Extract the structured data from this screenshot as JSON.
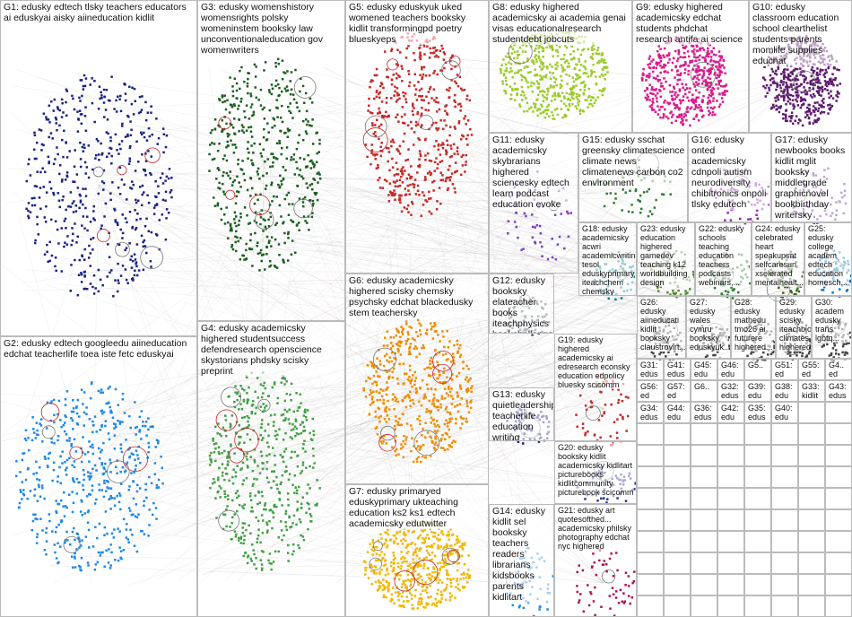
{
  "groups": [
    {
      "label": "G1: edusky edtech tlsky teachers educators ai eduskyai aisky aiineducation kidlit"
    },
    {
      "label": "G2: edusky edtech googleedu aiineducation edchat teacherlife toea iste fetc eduskyai"
    },
    {
      "label": "G3: edusky womenshistory womensrights polsky womeninstem booksky law unconventionaleducation gov womenwriters"
    },
    {
      "label": "G4: edusky academicsky highered studentsuccess defendresearch openscience skystorians phdsky scisky preprint"
    },
    {
      "label": "G5: edusky eduskyuk uked womened teachers booksky kidlit transformingpd poetry blueskyeps"
    },
    {
      "label": "G6: edusky academicsky highered scisky chemsky psychsky edchat blackedusky stem teachersky"
    },
    {
      "label": "G7: edusky primaryed eduskyprimary ukteaching education ks2 ks1 edtech academicsky edutwitter"
    },
    {
      "label": "G8: edusky highered academicsky ai academia genai visas educationalresearch studentdebt jobcuts"
    },
    {
      "label": "G9: edusky highered academicsky edchat students phdchat research antifa ai science"
    },
    {
      "label": "G10: edusky classroom education school clearthelist students parents momlife supplies educhat"
    },
    {
      "label": "G11: edusky academicsky skybrarians highered sciencesky edtech learn podcast education evoke"
    },
    {
      "label": "G12: edusky booksky elateacher books iteachphysics bookchallenge 20daybookchallenge physics kidlit mglit"
    },
    {
      "label": "G13: edusky quietleadership teacherlife education writing schoolleadership teaching introvert edsky literacy"
    },
    {
      "label": "G14: edusky kidlit sel booksky teachers readers librarians kidsbooks parents kidlitart"
    },
    {
      "label": "G15: edusky sschat greensky climatescience climate news climatenews carbon co2 environment"
    },
    {
      "label": "G16: edusky onted academicsky cdnpoli autism neurodiversity chibitronics onpoli tlsky edutech"
    },
    {
      "label": "G17: edusky newbooks books kidlit mglit booksky middlegrade graphicnovel bookbirthday writersky"
    },
    {
      "label": "G18: edusky academicsky acwri academicwriting tesol eduskyprimary iteachchem chemsky ukteaching"
    },
    {
      "label": "G19: edusky highered academicsky ai edresearch econsky education edpolicy bluesky scicomm"
    },
    {
      "label": "G20: edusky booksky kidlit academicsky kidlitart picturebooks kidlitcommunity picturebook scicomm"
    },
    {
      "label": "G21: edusky art quotesofthed... academicsky philsky photography edchat nyc highered"
    },
    {
      "label": "G22: edusky schools teaching education teachers podcasts webinars,..."
    },
    {
      "label": "G23: edusky education highered gamedev teaching k12 worldbuilding design"
    },
    {
      "label": "G24: edusky celebrated heart speakupsat selfcaresun xselerated mentalhealt..."
    },
    {
      "label": "G25: edusky college academ edtech education homesch..."
    },
    {
      "label": "G26: edusky aiineducati kidlit booksky claustrovirt..."
    },
    {
      "label": "G27: edusky wales cymru booksky eduskyuk..."
    },
    {
      "label": "G28: edusky mathedu tmo26 ai futurere highered..."
    },
    {
      "label": "G29: edusky scisky iteachbio climates highered..."
    },
    {
      "label": "G30: academ edusky trans lgbtq..."
    }
  ],
  "small_groups": [
    "G31: edus aiopti sssky ai pan",
    "G41: edus oog",
    "G45: edu",
    "G46: edu",
    "G5..",
    "G51: ed",
    "G55: ed",
    "G4.. ed",
    "G56: ed",
    "G57: ed",
    "G6..",
    "G32: edus airqu samh",
    "G39: edu",
    "G38: edu kidli",
    "G33: kidlit book edus",
    "G43: edus civil",
    "G34: edus iteo",
    "G44: edu ai",
    "G36: edus ev",
    "G42: edu writ",
    "G35: edus scie",
    "G40: edu scr"
  ]
}
